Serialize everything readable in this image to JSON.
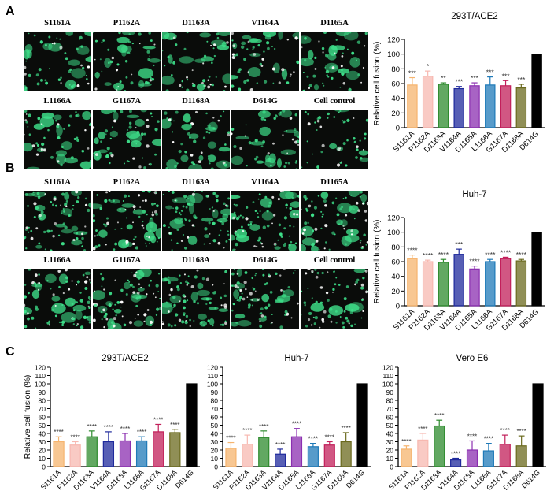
{
  "panels": {
    "A": {
      "letter": "A",
      "micro_row1": [
        "S1161A",
        "P1162A",
        "D1163A",
        "V1164A",
        "D1165A"
      ],
      "micro_row2": [
        "L1166A",
        "G1167A",
        "D1168A",
        "D614G",
        "Cell control"
      ]
    },
    "B": {
      "letter": "B",
      "micro_row1": [
        "S1161A",
        "P1162A",
        "D1163A",
        "V1164A",
        "D1165A"
      ],
      "micro_row2": [
        "L1166A",
        "G1167A",
        "D1168A",
        "D614G",
        "Cell control"
      ]
    },
    "C": {
      "letter": "C"
    }
  },
  "colors": {
    "S1161A": "#f6b46e",
    "P1162A": "#f7b8b0",
    "D1163A": "#2e8b2e",
    "V1164A": "#1f2a9c",
    "D1165A": "#8b2fb0",
    "L1166A": "#1f7ab8",
    "G1167A": "#c21f5a",
    "D1168A": "#6b6a1e",
    "D614G": "#000000",
    "fluor": "#3ee08a"
  },
  "chart_data": [
    {
      "id": "A",
      "type": "bar",
      "title": "293T/ACE2",
      "ylabel": "Relative cell fusion (%)",
      "ylim": [
        0,
        120
      ],
      "yticks": [
        0,
        20,
        40,
        60,
        80,
        100,
        120
      ],
      "categories": [
        "S1161A",
        "P1162A",
        "D1163A",
        "V1164A",
        "D1165A",
        "L1166A",
        "G1167A",
        "D1168A",
        "D614G"
      ],
      "values": [
        58,
        70,
        59,
        53,
        57,
        58,
        57,
        54,
        100
      ],
      "errors": [
        10,
        7,
        2,
        3,
        4,
        11,
        7,
        5,
        0
      ],
      "significance": [
        "***",
        "*",
        "**",
        "***",
        "***",
        "***",
        "***",
        "***",
        ""
      ]
    },
    {
      "id": "B",
      "type": "bar",
      "title": "Huh-7",
      "ylabel": "Relative cell fusion (%)",
      "ylim": [
        0,
        120
      ],
      "yticks": [
        0,
        20,
        40,
        60,
        80,
        100,
        120
      ],
      "categories": [
        "S1161A",
        "P1162A",
        "D1163A",
        "V1164A",
        "D1165A",
        "L1166A",
        "G1167A",
        "D1168A",
        "D614G"
      ],
      "values": [
        64,
        60,
        59,
        70,
        50,
        60,
        64,
        61,
        100
      ],
      "errors": [
        5,
        2,
        4,
        7,
        4,
        3,
        2,
        2,
        0
      ],
      "significance": [
        "****",
        "****",
        "****",
        "***",
        "****",
        "****",
        "****",
        "****",
        ""
      ]
    },
    {
      "id": "C1",
      "type": "bar",
      "title": "293T/ACE2",
      "ylabel": "Relative cell fusion (%)",
      "ylim": [
        0,
        120
      ],
      "yticks": [
        0,
        10,
        20,
        30,
        40,
        50,
        60,
        70,
        80,
        90,
        100,
        110,
        120
      ],
      "categories": [
        "S1161A",
        "P1162A",
        "D1163A",
        "V1164A",
        "D1165A",
        "L1166A",
        "G1167A",
        "D1168A",
        "D614G"
      ],
      "values": [
        30,
        26,
        36,
        30,
        31,
        31,
        42,
        41,
        100
      ],
      "errors": [
        6,
        4,
        7,
        12,
        9,
        5,
        9,
        4,
        0
      ],
      "significance": [
        "****",
        "****",
        "****",
        "****",
        "****",
        "****",
        "****",
        "****",
        ""
      ]
    },
    {
      "id": "C2",
      "type": "bar",
      "title": "Huh-7",
      "ylabel": "",
      "ylim": [
        0,
        120
      ],
      "yticks": [
        0,
        10,
        20,
        30,
        40,
        50,
        60,
        70,
        80,
        90,
        100,
        110,
        120
      ],
      "categories": [
        "S1161A",
        "P1162A",
        "D1163A",
        "V1164A",
        "D1165A",
        "L1166A",
        "G1167A",
        "D1168A",
        "D614G"
      ],
      "values": [
        22,
        27,
        35,
        15,
        36,
        24,
        26,
        30,
        100
      ],
      "errors": [
        7,
        11,
        8,
        6,
        10,
        4,
        4,
        11,
        0
      ],
      "significance": [
        "****",
        "****",
        "****",
        "****",
        "****",
        "****",
        "****",
        "****",
        ""
      ]
    },
    {
      "id": "C3",
      "type": "bar",
      "title": "Vero E6",
      "ylabel": "",
      "ylim": [
        0,
        120
      ],
      "yticks": [
        0,
        10,
        20,
        30,
        40,
        50,
        60,
        70,
        80,
        90,
        100,
        110,
        120
      ],
      "categories": [
        "S1161A",
        "P1162A",
        "D1163A",
        "V1164A",
        "D1165A",
        "L1166A",
        "G1167A",
        "D1168A",
        "D614G"
      ],
      "values": [
        21,
        32,
        49,
        8,
        20,
        19,
        27,
        25,
        100
      ],
      "errors": [
        4,
        8,
        7,
        2,
        11,
        9,
        11,
        12,
        0
      ],
      "significance": [
        "****",
        "****",
        "****",
        "****",
        "****",
        "****",
        "****",
        "****",
        ""
      ]
    }
  ]
}
